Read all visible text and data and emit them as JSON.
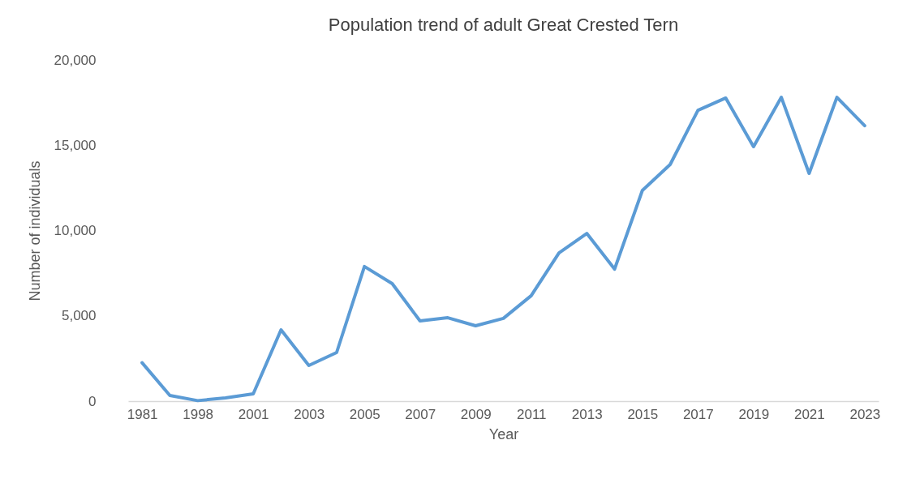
{
  "chart_data": {
    "type": "line",
    "title": "Population trend of adult Great Crested Tern",
    "xlabel": "Year",
    "ylabel": "Number of individuals",
    "categories": [
      "1981",
      null,
      "1998",
      null,
      "2001",
      null,
      "2003",
      null,
      "2005",
      null,
      "2007",
      null,
      "2009",
      null,
      "2011",
      null,
      "2013",
      null,
      "2015",
      null,
      "2017",
      null,
      "2019",
      null,
      "2021",
      null,
      "2023"
    ],
    "series": [
      {
        "color": "#5b9bd5",
        "values": [
          2250,
          330,
          30,
          190,
          430,
          4180,
          2090,
          2850,
          7890,
          6890,
          4700,
          4890,
          4420,
          4850,
          6180,
          8690,
          9830,
          7740,
          12350,
          13870,
          17050,
          17770,
          14920,
          17810,
          13350,
          17810,
          16150
        ]
      }
    ],
    "ylim": [
      0,
      20000
    ],
    "yticks": [
      {
        "value": 0,
        "label": "0"
      },
      {
        "value": 5000,
        "label": "5,000"
      },
      {
        "value": 10000,
        "label": "10,000"
      },
      {
        "value": 15000,
        "label": "15,000"
      },
      {
        "value": 20000,
        "label": "20,000"
      }
    ],
    "grid": false,
    "marker": "none",
    "line_style": "solid"
  }
}
